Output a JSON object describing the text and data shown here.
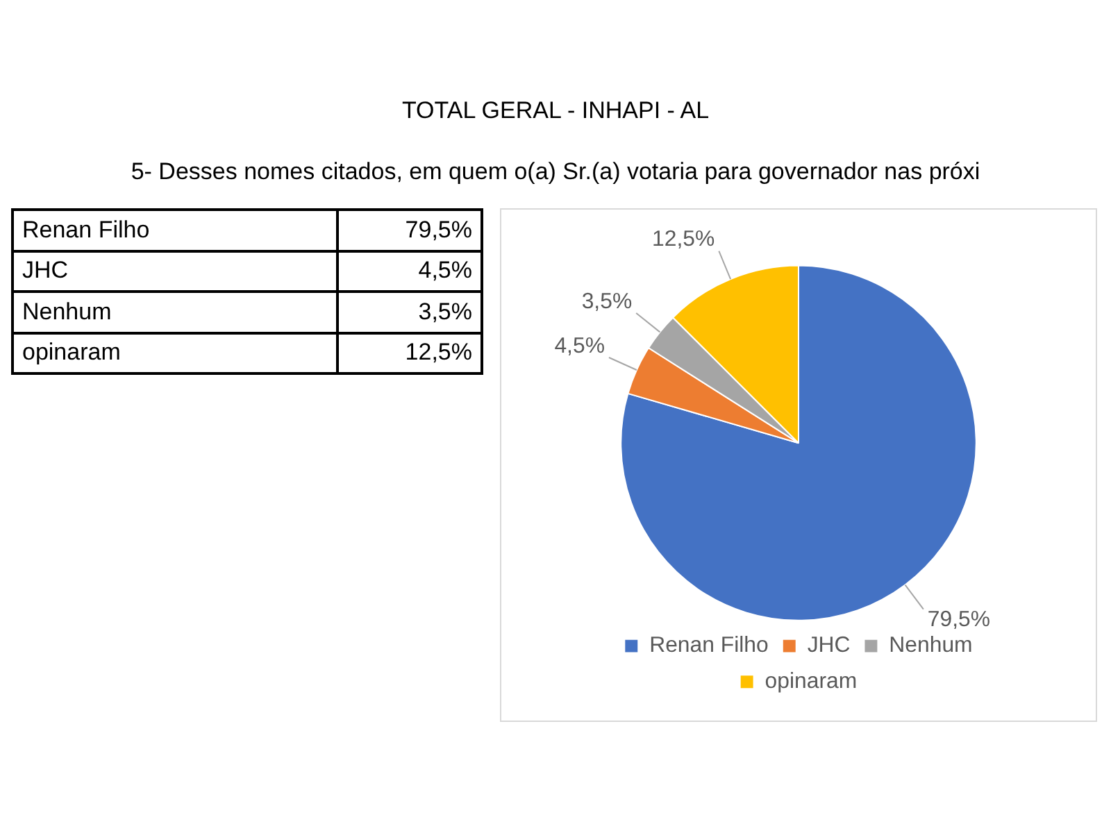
{
  "chart_data": {
    "type": "pie",
    "title": "TOTAL GERAL - INHAPI - AL",
    "subtitle": "5- Desses nomes citados, em quem o(a) Sr.(a) votaria para governador nas próxi",
    "categories": [
      "Renan Filho",
      "JHC",
      "Nenhum",
      "opinaram"
    ],
    "values": [
      79.5,
      4.5,
      3.5,
      12.5
    ],
    "colors": [
      "#4472c4",
      "#ed7d31",
      "#a5a5a5",
      "#ffc000"
    ],
    "value_labels": [
      "79,5%",
      "4,5%",
      "3,5%",
      "12,5%"
    ],
    "legend": "bottom"
  }
}
